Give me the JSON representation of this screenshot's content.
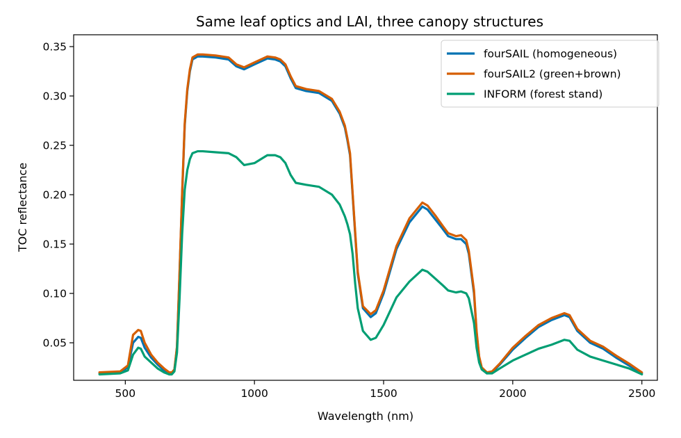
{
  "chart_data": {
    "type": "line",
    "title": "Same leaf optics and LAI, three canopy structures",
    "xlabel": "Wavelength (nm)",
    "ylabel": "TOC reflectance",
    "xlim": [
      300,
      2560
    ],
    "ylim": [
      0.012,
      0.362
    ],
    "xticks": [
      500,
      1000,
      1500,
      2000,
      2500
    ],
    "xtick_labels": [
      "500",
      "1000",
      "1500",
      "2000",
      "2500"
    ],
    "yticks": [
      0.05,
      0.1,
      0.15,
      0.2,
      0.25,
      0.3,
      0.35
    ],
    "ytick_labels": [
      "0.05",
      "0.10",
      "0.15",
      "0.20",
      "0.25",
      "0.30",
      "0.35"
    ],
    "grid": false,
    "legend_position": "top-right",
    "series": [
      {
        "name": "fourSAIL (homogeneous)",
        "color": "#0072b2",
        "x": [
          400,
          480,
          510,
          530,
          550,
          560,
          575,
          600,
          625,
          650,
          670,
          680,
          690,
          700,
          710,
          720,
          730,
          740,
          750,
          760,
          780,
          800,
          850,
          900,
          930,
          960,
          1000,
          1050,
          1080,
          1100,
          1120,
          1140,
          1160,
          1200,
          1250,
          1300,
          1330,
          1350,
          1360,
          1370,
          1380,
          1390,
          1400,
          1420,
          1450,
          1470,
          1500,
          1550,
          1600,
          1650,
          1670,
          1700,
          1730,
          1750,
          1780,
          1800,
          1820,
          1830,
          1850,
          1860,
          1870,
          1880,
          1900,
          1920,
          1950,
          2000,
          2050,
          2100,
          2150,
          2200,
          2220,
          2250,
          2300,
          2350,
          2400,
          2450,
          2500
        ],
        "y": [
          0.019,
          0.02,
          0.025,
          0.05,
          0.056,
          0.055,
          0.045,
          0.035,
          0.028,
          0.022,
          0.019,
          0.019,
          0.022,
          0.045,
          0.12,
          0.2,
          0.27,
          0.305,
          0.325,
          0.337,
          0.34,
          0.34,
          0.339,
          0.337,
          0.33,
          0.327,
          0.332,
          0.338,
          0.337,
          0.335,
          0.33,
          0.318,
          0.308,
          0.305,
          0.303,
          0.295,
          0.282,
          0.268,
          0.255,
          0.24,
          0.2,
          0.16,
          0.12,
          0.085,
          0.076,
          0.08,
          0.1,
          0.145,
          0.172,
          0.188,
          0.185,
          0.175,
          0.165,
          0.158,
          0.155,
          0.155,
          0.15,
          0.14,
          0.1,
          0.06,
          0.035,
          0.024,
          0.019,
          0.02,
          0.028,
          0.043,
          0.055,
          0.066,
          0.073,
          0.078,
          0.076,
          0.062,
          0.05,
          0.044,
          0.035,
          0.027,
          0.019
        ]
      },
      {
        "name": "fourSAIL2 (green+brown)",
        "color": "#d55e00",
        "x": [
          400,
          480,
          510,
          530,
          550,
          560,
          575,
          600,
          625,
          650,
          670,
          680,
          690,
          700,
          710,
          720,
          730,
          740,
          750,
          760,
          780,
          800,
          850,
          900,
          930,
          960,
          1000,
          1050,
          1080,
          1100,
          1120,
          1140,
          1160,
          1200,
          1250,
          1300,
          1330,
          1350,
          1360,
          1370,
          1380,
          1390,
          1400,
          1420,
          1450,
          1470,
          1500,
          1550,
          1600,
          1650,
          1670,
          1700,
          1730,
          1750,
          1780,
          1800,
          1820,
          1830,
          1850,
          1860,
          1870,
          1880,
          1900,
          1920,
          1950,
          2000,
          2050,
          2100,
          2150,
          2200,
          2220,
          2250,
          2300,
          2350,
          2400,
          2450,
          2500
        ],
        "y": [
          0.02,
          0.021,
          0.027,
          0.058,
          0.063,
          0.062,
          0.05,
          0.038,
          0.03,
          0.024,
          0.02,
          0.02,
          0.023,
          0.046,
          0.121,
          0.202,
          0.272,
          0.307,
          0.327,
          0.339,
          0.342,
          0.342,
          0.341,
          0.339,
          0.332,
          0.329,
          0.334,
          0.34,
          0.339,
          0.337,
          0.332,
          0.32,
          0.31,
          0.307,
          0.305,
          0.297,
          0.284,
          0.27,
          0.257,
          0.242,
          0.202,
          0.162,
          0.122,
          0.087,
          0.079,
          0.083,
          0.103,
          0.148,
          0.176,
          0.192,
          0.189,
          0.179,
          0.168,
          0.161,
          0.158,
          0.159,
          0.154,
          0.143,
          0.103,
          0.062,
          0.036,
          0.025,
          0.02,
          0.021,
          0.029,
          0.045,
          0.057,
          0.068,
          0.075,
          0.08,
          0.078,
          0.064,
          0.052,
          0.046,
          0.037,
          0.029,
          0.02
        ]
      },
      {
        "name": "INFORM (forest stand)",
        "color": "#009e73",
        "x": [
          400,
          480,
          510,
          530,
          550,
          560,
          575,
          600,
          625,
          650,
          670,
          680,
          690,
          700,
          710,
          720,
          730,
          740,
          750,
          760,
          780,
          800,
          850,
          900,
          930,
          960,
          1000,
          1050,
          1080,
          1100,
          1120,
          1140,
          1160,
          1200,
          1250,
          1300,
          1330,
          1350,
          1360,
          1370,
          1380,
          1390,
          1400,
          1420,
          1450,
          1470,
          1500,
          1550,
          1600,
          1650,
          1670,
          1700,
          1730,
          1750,
          1780,
          1800,
          1820,
          1830,
          1850,
          1860,
          1870,
          1880,
          1900,
          1920,
          1950,
          2000,
          2050,
          2100,
          2150,
          2200,
          2220,
          2250,
          2300,
          2350,
          2400,
          2450,
          2500
        ],
        "y": [
          0.018,
          0.019,
          0.022,
          0.038,
          0.045,
          0.044,
          0.036,
          0.03,
          0.024,
          0.02,
          0.018,
          0.018,
          0.021,
          0.04,
          0.095,
          0.16,
          0.205,
          0.225,
          0.236,
          0.242,
          0.244,
          0.244,
          0.243,
          0.242,
          0.238,
          0.23,
          0.232,
          0.24,
          0.24,
          0.238,
          0.232,
          0.22,
          0.212,
          0.21,
          0.208,
          0.2,
          0.19,
          0.178,
          0.17,
          0.16,
          0.14,
          0.11,
          0.085,
          0.062,
          0.053,
          0.055,
          0.068,
          0.096,
          0.112,
          0.124,
          0.122,
          0.115,
          0.108,
          0.103,
          0.101,
          0.102,
          0.1,
          0.095,
          0.07,
          0.045,
          0.03,
          0.023,
          0.019,
          0.019,
          0.024,
          0.032,
          0.038,
          0.044,
          0.048,
          0.053,
          0.052,
          0.043,
          0.036,
          0.032,
          0.028,
          0.024,
          0.018
        ]
      }
    ]
  }
}
